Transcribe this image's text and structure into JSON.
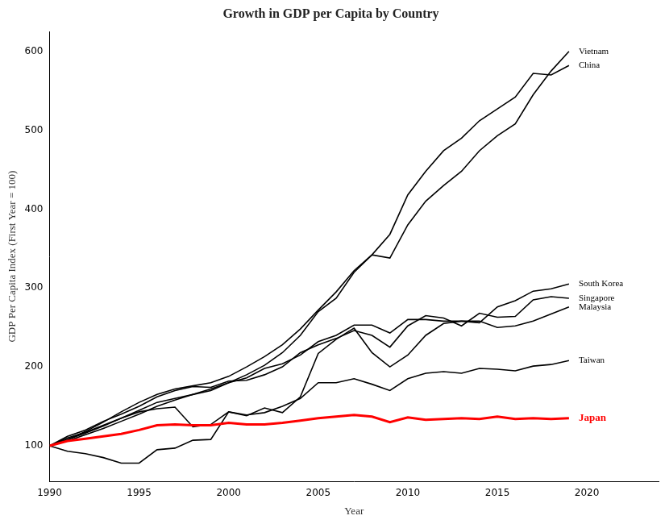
{
  "chart_data": {
    "type": "line",
    "title": "Growth in GDP per Capita by Country",
    "x_label": "Year",
    "y_label": "GDP Per Capita Index (First Year = 100)",
    "x": [
      1990,
      1991,
      1992,
      1993,
      1994,
      1995,
      1996,
      1997,
      1998,
      1999,
      2000,
      2001,
      2002,
      2003,
      2004,
      2005,
      2006,
      2007,
      2008,
      2009,
      2010,
      2011,
      2012,
      2013,
      2014,
      2015,
      2016,
      2017,
      2018,
      2019
    ],
    "series": [
      {
        "name": "Vietnam",
        "color": "#000000",
        "values": [
          100,
          106,
          114,
          122,
          131,
          140,
          150,
          158,
          165,
          172,
          180,
          190,
          202,
          218,
          240,
          270,
          287,
          320,
          342,
          338,
          380,
          410,
          430,
          448,
          474,
          493,
          508,
          545,
          575,
          600
        ]
      },
      {
        "name": "China",
        "color": "#000000",
        "values": [
          100,
          108,
          118,
          130,
          143,
          155,
          165,
          172,
          176,
          180,
          188,
          200,
          213,
          228,
          248,
          272,
          295,
          322,
          342,
          368,
          418,
          448,
          474,
          490,
          512,
          527,
          542,
          572,
          570,
          582
        ]
      },
      {
        "name": "South Korea",
        "color": "#000000",
        "values": [
          100,
          110,
          117,
          126,
          135,
          145,
          155,
          160,
          165,
          170,
          180,
          186,
          198,
          204,
          215,
          232,
          240,
          253,
          253,
          243,
          260,
          260,
          258,
          258,
          256,
          276,
          284,
          296,
          299,
          305
        ]
      },
      {
        "name": "Singapore",
        "color": "#000000",
        "values": [
          100,
          112,
          120,
          131,
          140,
          150,
          162,
          170,
          175,
          174,
          182,
          183,
          190,
          200,
          218,
          228,
          236,
          246,
          240,
          225,
          252,
          265,
          262,
          252,
          268,
          263,
          264,
          285,
          289,
          287
        ]
      },
      {
        "name": "Malaysia",
        "color": "#000000",
        "values": [
          100,
          93,
          90,
          85,
          78,
          78,
          95,
          97,
          107,
          108,
          143,
          138,
          148,
          142,
          162,
          217,
          235,
          249,
          218,
          200,
          215,
          240,
          255,
          258,
          258,
          250,
          252,
          258,
          267,
          276
        ]
      },
      {
        "name": "Taiwan",
        "color": "#000000",
        "values": [
          100,
          108,
          116,
          125,
          135,
          143,
          147,
          149,
          124,
          127,
          143,
          139,
          142,
          150,
          160,
          180,
          180,
          185,
          178,
          170,
          185,
          192,
          194,
          192,
          198,
          197,
          195,
          201,
          203,
          208
        ]
      },
      {
        "name": "Japan",
        "color": "#ff0000",
        "values": [
          100,
          106,
          109,
          112,
          115,
          120,
          126,
          127,
          126,
          126,
          129,
          127,
          127,
          129,
          132,
          135,
          137,
          139,
          137,
          130,
          136,
          133,
          134,
          135,
          134,
          137,
          134,
          135,
          134,
          135
        ]
      }
    ],
    "xlim": [
      1990,
      2024
    ],
    "xticks": [
      1990,
      1995,
      2000,
      2005,
      2010,
      2015,
      2020
    ],
    "ylim": [
      55,
      625
    ],
    "yticks": [
      100,
      200,
      300,
      400,
      500,
      600
    ],
    "grid": false
  }
}
